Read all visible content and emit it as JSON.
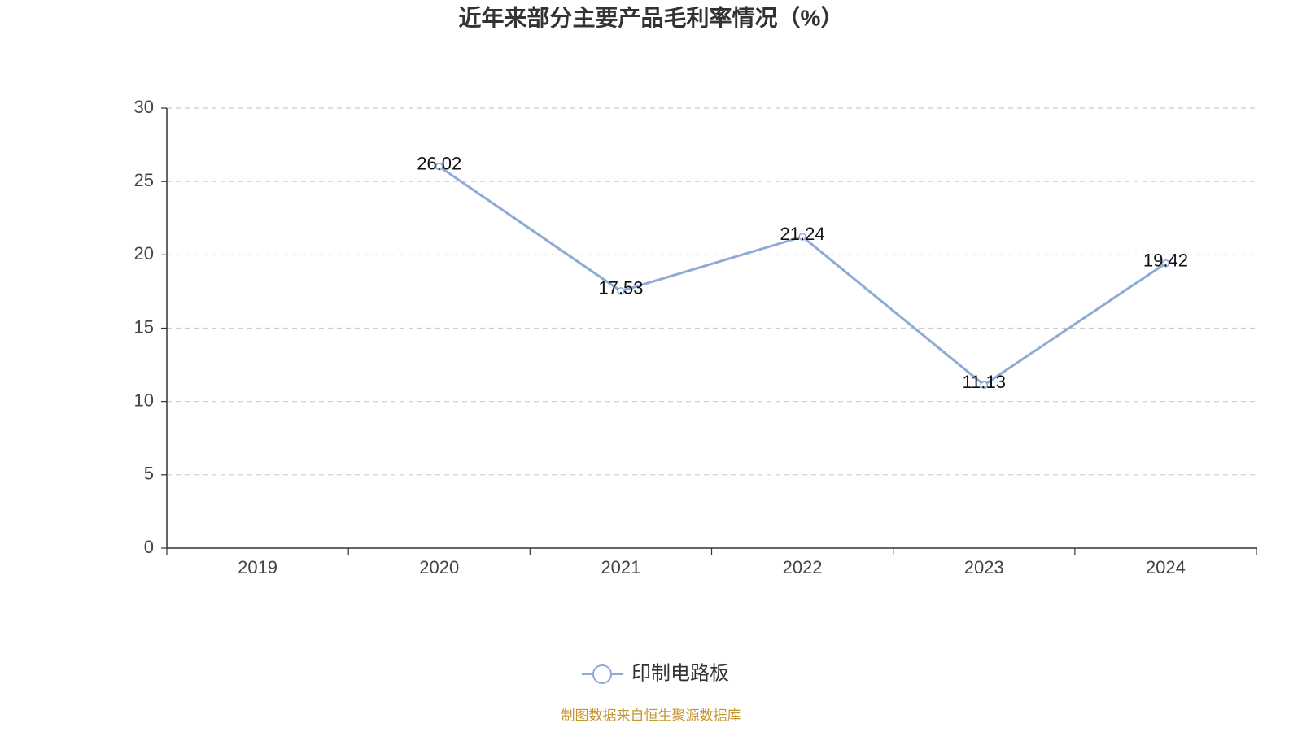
{
  "chart_data": {
    "type": "line",
    "title": "近年来部分主要产品毛利率情况（%）",
    "categories": [
      "2019",
      "2020",
      "2021",
      "2022",
      "2023",
      "2024"
    ],
    "series": [
      {
        "name": "印制电路板",
        "values": [
          null,
          26.02,
          17.53,
          21.24,
          11.13,
          19.42
        ],
        "color": "#8eaad6"
      }
    ],
    "yticks": [
      0,
      5,
      10,
      15,
      20,
      25,
      30
    ],
    "ylim": [
      0,
      30
    ],
    "xlabel": "",
    "ylabel": "",
    "grid": true,
    "legend": "bottom-center"
  },
  "source": "制图数据来自恒生聚源数据库",
  "colors": {
    "axis": "#333333",
    "grid": "#cccccc",
    "source": "#c4962f"
  }
}
